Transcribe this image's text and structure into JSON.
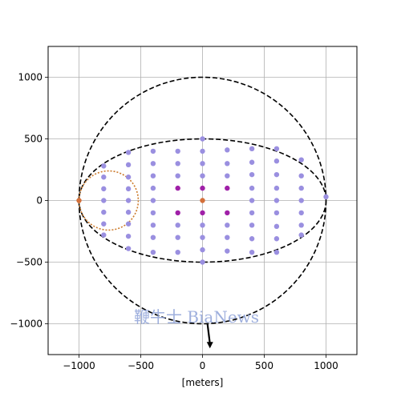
{
  "chart_data": {
    "type": "scatter",
    "xlabel": "[meters]",
    "ylabel": "",
    "xlim": [
      -1250,
      1250
    ],
    "ylim": [
      -1250,
      1250
    ],
    "grid": true,
    "xticks": [
      -1000,
      -500,
      0,
      500,
      1000
    ],
    "yticks": [
      -1000,
      -500,
      0,
      500,
      1000
    ],
    "xtick_labels": [
      "−1000",
      "−500",
      "0",
      "500",
      "1000"
    ],
    "ytick_labels": [
      "−1000",
      "−500",
      "0",
      "500",
      "1000"
    ],
    "curves": [
      {
        "shape": "circle",
        "cx": 0,
        "cy": 0,
        "rx": 1000,
        "ry": 1000,
        "style": "dashed",
        "color": "#000000"
      },
      {
        "shape": "ellipse",
        "cx": 0,
        "cy": 0,
        "rx": 1000,
        "ry": 500,
        "style": "dashed",
        "color": "#000000"
      },
      {
        "shape": "circle",
        "cx": -760,
        "cy": 0,
        "rx": 240,
        "ry": 240,
        "style": "dotted",
        "color": "#cc7a2b"
      }
    ],
    "series": [
      {
        "color": "#9a8fe0",
        "points": [
          [
            -800,
            280
          ],
          [
            -800,
            190
          ],
          [
            -800,
            95
          ],
          [
            -800,
            0
          ],
          [
            -800,
            -95
          ],
          [
            -800,
            -190
          ],
          [
            -800,
            -280
          ],
          [
            -600,
            390
          ],
          [
            -600,
            290
          ],
          [
            -600,
            190
          ],
          [
            -600,
            95
          ],
          [
            -600,
            0
          ],
          [
            -600,
            -95
          ],
          [
            -600,
            -190
          ],
          [
            -600,
            -290
          ],
          [
            -600,
            -390
          ],
          [
            -400,
            400
          ],
          [
            -400,
            300
          ],
          [
            -400,
            200
          ],
          [
            -400,
            100
          ],
          [
            -400,
            0
          ],
          [
            -400,
            -100
          ],
          [
            -400,
            -200
          ],
          [
            -400,
            -300
          ],
          [
            -400,
            -420
          ],
          [
            -200,
            400
          ],
          [
            -200,
            300
          ],
          [
            -200,
            200
          ],
          [
            -200,
            -200
          ],
          [
            -200,
            -300
          ],
          [
            -200,
            -420
          ],
          [
            0,
            500
          ],
          [
            0,
            400
          ],
          [
            0,
            300
          ],
          [
            0,
            200
          ],
          [
            0,
            -200
          ],
          [
            0,
            -300
          ],
          [
            0,
            -400
          ],
          [
            0,
            -500
          ],
          [
            200,
            410
          ],
          [
            200,
            300
          ],
          [
            200,
            200
          ],
          [
            200,
            -200
          ],
          [
            200,
            -300
          ],
          [
            200,
            -410
          ],
          [
            400,
            420
          ],
          [
            400,
            310
          ],
          [
            400,
            210
          ],
          [
            400,
            100
          ],
          [
            400,
            0
          ],
          [
            400,
            -100
          ],
          [
            400,
            -200
          ],
          [
            400,
            -310
          ],
          [
            400,
            -420
          ],
          [
            600,
            420
          ],
          [
            600,
            320
          ],
          [
            600,
            210
          ],
          [
            600,
            100
          ],
          [
            600,
            0
          ],
          [
            600,
            -100
          ],
          [
            600,
            -210
          ],
          [
            600,
            -310
          ],
          [
            600,
            -420
          ],
          [
            800,
            330
          ],
          [
            800,
            200
          ],
          [
            800,
            100
          ],
          [
            800,
            0
          ],
          [
            800,
            -100
          ],
          [
            800,
            -200
          ],
          [
            800,
            -280
          ],
          [
            1000,
            30
          ]
        ]
      },
      {
        "color": "#a020a8",
        "points": [
          [
            -200,
            100
          ],
          [
            -200,
            -100
          ],
          [
            0,
            100
          ],
          [
            0,
            -100
          ],
          [
            200,
            100
          ],
          [
            200,
            -100
          ]
        ]
      },
      {
        "color": "#d4703a",
        "points": [
          [
            0,
            0
          ],
          [
            -1000,
            0
          ]
        ]
      }
    ],
    "arrow": {
      "from": [
        40,
        -1000
      ],
      "to": [
        60,
        -1200
      ],
      "color": "#000000"
    }
  },
  "watermark": {
    "text": "鞭牛士 BiaNews"
  }
}
